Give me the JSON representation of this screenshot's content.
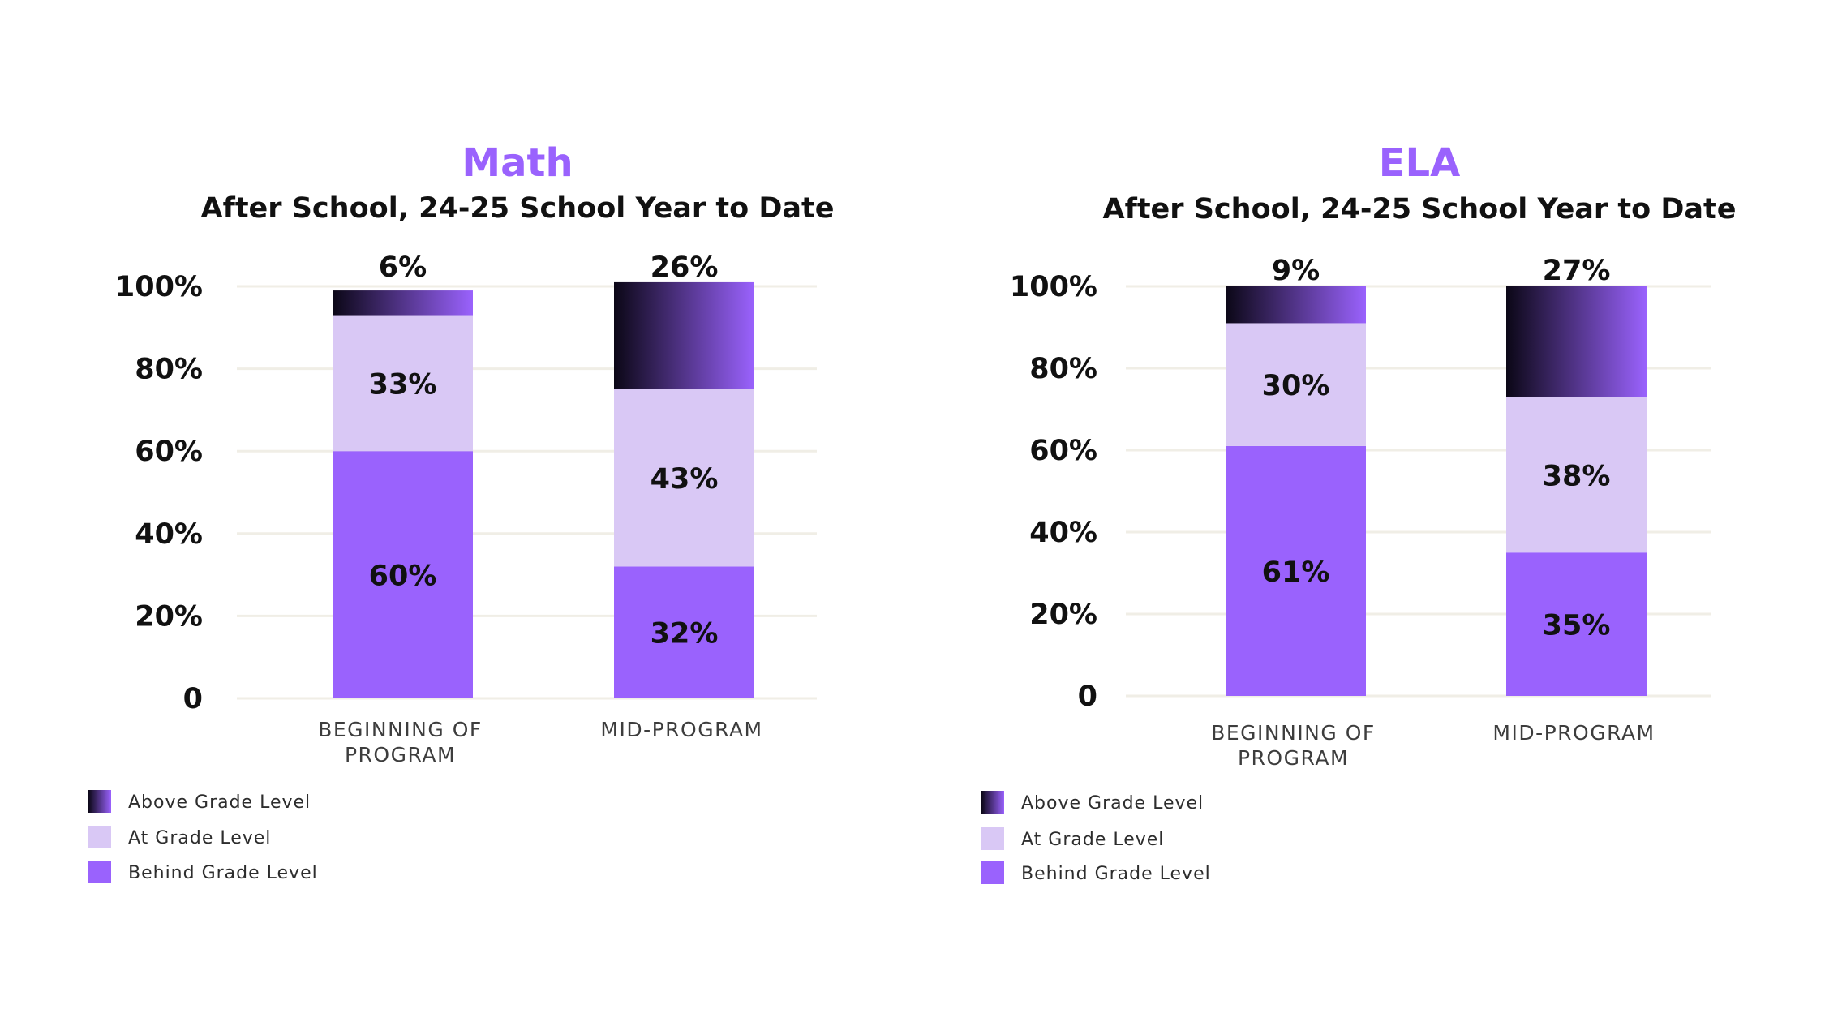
{
  "colors": {
    "behind": "#9a62fd",
    "at": "#d9c8f5",
    "above_start": "#0b0716",
    "above_end": "#9a62fd",
    "title_accent": "#9a62fd",
    "grid": "#f0eee6",
    "text": "#111111"
  },
  "legend": [
    {
      "key": "above",
      "label": "Above Grade Level"
    },
    {
      "key": "at",
      "label": "At Grade Level"
    },
    {
      "key": "behind",
      "label": "Behind Grade Level"
    }
  ],
  "chart_data": [
    {
      "type": "bar",
      "stacked": true,
      "title": "Math",
      "subtitle": "After School, 24-25 School Year to Date",
      "y_ticks": [
        "0",
        "20%",
        "40%",
        "60%",
        "80%",
        "100%"
      ],
      "ylim": [
        0,
        100
      ],
      "categories": [
        [
          "BEGINNING OF",
          "PROGRAM"
        ],
        [
          "MID-PROGRAM"
        ]
      ],
      "series": [
        {
          "key": "behind",
          "name": "Behind Grade Level",
          "values": [
            60,
            32
          ]
        },
        {
          "key": "at",
          "name": "At Grade Level",
          "values": [
            33,
            43
          ]
        },
        {
          "key": "above",
          "name": "Above Grade Level",
          "values": [
            6,
            26
          ]
        }
      ],
      "labels": [
        {
          "behind": "60%",
          "at": "33%",
          "above": "6%"
        },
        {
          "behind": "32%",
          "at": "43%",
          "above": "26%"
        }
      ]
    },
    {
      "type": "bar",
      "stacked": true,
      "title": "ELA",
      "subtitle": "After School, 24-25 School Year to Date",
      "y_ticks": [
        "0",
        "20%",
        "40%",
        "60%",
        "80%",
        "100%"
      ],
      "ylim": [
        0,
        100
      ],
      "categories": [
        [
          "BEGINNING OF",
          "PROGRAM"
        ],
        [
          "MID-PROGRAM"
        ]
      ],
      "series": [
        {
          "key": "behind",
          "name": "Behind Grade Level",
          "values": [
            61,
            35
          ]
        },
        {
          "key": "at",
          "name": "At Grade Level",
          "values": [
            30,
            38
          ]
        },
        {
          "key": "above",
          "name": "Above Grade Level",
          "values": [
            9,
            27
          ]
        }
      ],
      "labels": [
        {
          "behind": "61%",
          "at": "30%",
          "above": "9%"
        },
        {
          "behind": "35%",
          "at": "38%",
          "above": "27%"
        }
      ]
    }
  ]
}
